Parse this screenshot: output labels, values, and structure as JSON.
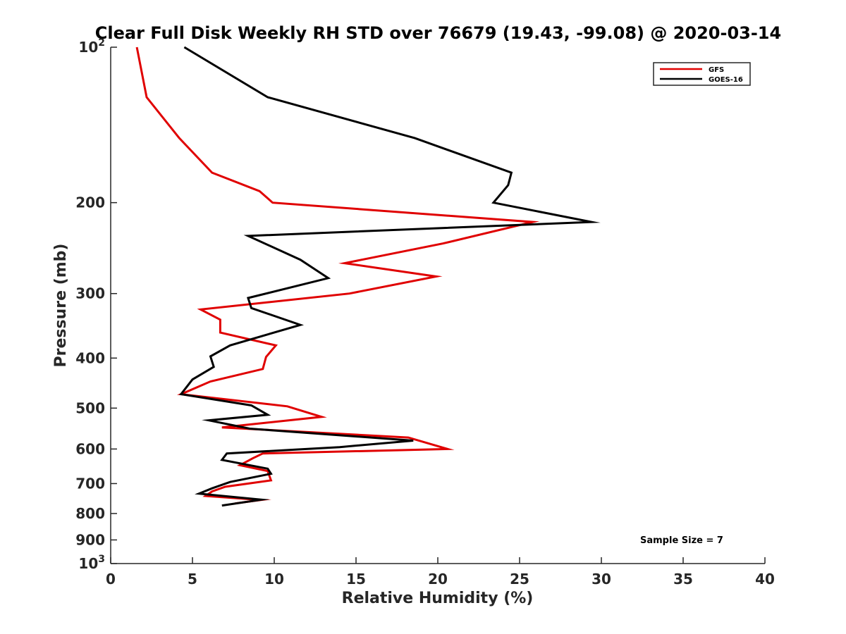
{
  "chart_data": {
    "type": "line",
    "title": "Clear Full Disk Weekly RH STD over 76679 (19.43, -99.08) @ 2020-03-14",
    "xlabel": "Relative Humidity (%)",
    "ylabel": "Pressure (mb)",
    "xlim": [
      0,
      40
    ],
    "ylim": [
      100,
      1000
    ],
    "yscale": "log",
    "y_reversed": true,
    "grid": false,
    "legend_position": "top-right",
    "x_ticks": [
      "0",
      "5",
      "10",
      "15",
      "20",
      "25",
      "30",
      "35",
      "40"
    ],
    "y_ticks": [
      {
        "value": 100,
        "label": "10",
        "sup": "2"
      },
      {
        "value": 200,
        "label": "200",
        "sup": ""
      },
      {
        "value": 300,
        "label": "300",
        "sup": ""
      },
      {
        "value": 400,
        "label": "400",
        "sup": ""
      },
      {
        "value": 500,
        "label": "500",
        "sup": ""
      },
      {
        "value": 600,
        "label": "600",
        "sup": ""
      },
      {
        "value": 700,
        "label": "700",
        "sup": ""
      },
      {
        "value": 800,
        "label": "800",
        "sup": ""
      },
      {
        "value": 900,
        "label": "900",
        "sup": ""
      },
      {
        "value": 1000,
        "label": "10",
        "sup": "3"
      }
    ],
    "series": [
      {
        "name": "GFS",
        "color": "#e00000",
        "points": [
          [
            1.6,
            100
          ],
          [
            2.2,
            125
          ],
          [
            4.2,
            150
          ],
          [
            6.2,
            175
          ],
          [
            9.1,
            190
          ],
          [
            9.9,
            200
          ],
          [
            25.8,
            218
          ],
          [
            20.3,
            240
          ],
          [
            14.3,
            262
          ],
          [
            19.9,
            278
          ],
          [
            14.6,
            300
          ],
          [
            5.5,
            322
          ],
          [
            6.7,
            337
          ],
          [
            6.7,
            357
          ],
          [
            10.1,
            378
          ],
          [
            9.5,
            398
          ],
          [
            9.3,
            420
          ],
          [
            6.1,
            444
          ],
          [
            4.3,
            470
          ],
          [
            10.8,
            496
          ],
          [
            12.9,
            520
          ],
          [
            6.8,
            545
          ],
          [
            18.2,
            570
          ],
          [
            20.6,
            600
          ],
          [
            9.3,
            612
          ],
          [
            8.7,
            625
          ],
          [
            7.9,
            645
          ],
          [
            9.6,
            662
          ],
          [
            9.8,
            690
          ],
          [
            7.0,
            710
          ],
          [
            6.2,
            725
          ],
          [
            5.8,
            740
          ],
          [
            9.2,
            753
          ],
          [
            7.6,
            765
          ]
        ]
      },
      {
        "name": "GOES-16",
        "color": "#000000",
        "points": [
          [
            4.5,
            100
          ],
          [
            9.6,
            125
          ],
          [
            18.6,
            150
          ],
          [
            24.5,
            175
          ],
          [
            24.3,
            185
          ],
          [
            23.4,
            200
          ],
          [
            29.4,
            218
          ],
          [
            8.4,
            232
          ],
          [
            11.6,
            258
          ],
          [
            13.3,
            280
          ],
          [
            8.4,
            306
          ],
          [
            8.6,
            320
          ],
          [
            11.6,
            345
          ],
          [
            7.3,
            378
          ],
          [
            6.1,
            397
          ],
          [
            6.3,
            416
          ],
          [
            5.0,
            440
          ],
          [
            4.3,
            470
          ],
          [
            8.6,
            494
          ],
          [
            9.6,
            515
          ],
          [
            6.0,
            528
          ],
          [
            8.5,
            548
          ],
          [
            18.5,
            578
          ],
          [
            14.0,
            595
          ],
          [
            7.1,
            612
          ],
          [
            6.8,
            630
          ],
          [
            9.6,
            655
          ],
          [
            9.8,
            670
          ],
          [
            7.3,
            695
          ],
          [
            6.2,
            715
          ],
          [
            5.4,
            732
          ],
          [
            9.2,
            752
          ],
          [
            6.8,
            772
          ]
        ]
      }
    ],
    "annotation": "Sample Size = 7"
  }
}
